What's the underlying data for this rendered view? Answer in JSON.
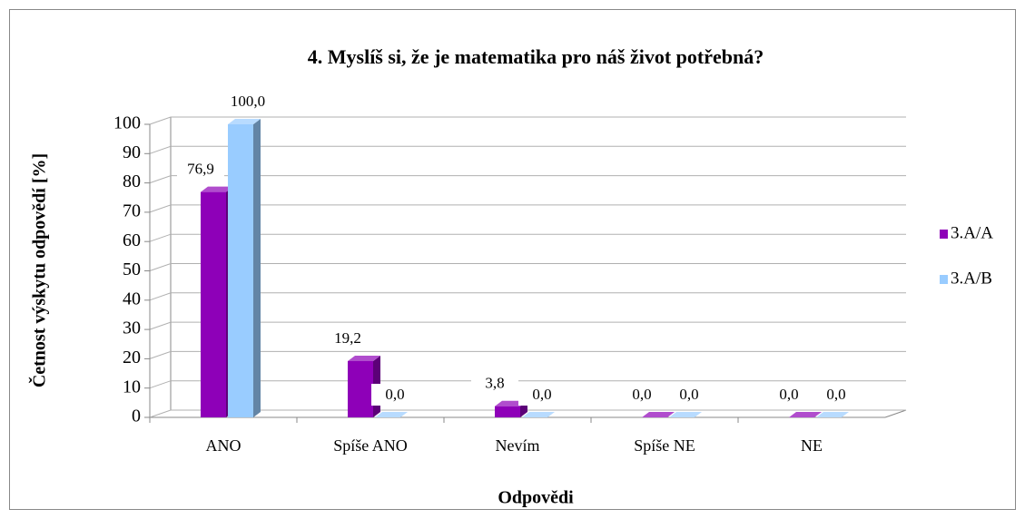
{
  "chart_data": {
    "type": "bar3d",
    "title": "4. Myslíš si, že je matematika pro náš život potřebná?",
    "categories": [
      "ANO",
      "Spíše ANO",
      "Nevím",
      "Spíše NE",
      "NE"
    ],
    "series": [
      {
        "name": "3.A/A",
        "color": "#8e00b8",
        "values": [
          76.9,
          19.2,
          3.8,
          0,
          0
        ],
        "value_labels": [
          "76,9",
          "19,2",
          "3,8",
          "0,0",
          "0,0"
        ]
      },
      {
        "name": "3.A/B",
        "color": "#99ccff",
        "values": [
          100,
          0,
          0,
          0,
          0
        ],
        "value_labels": [
          "100,0",
          "0,0",
          "0,0",
          "0,0",
          "0,0"
        ]
      }
    ],
    "ylim": [
      0,
      100
    ],
    "yticks": [
      0,
      10,
      20,
      30,
      40,
      50,
      60,
      70,
      80,
      90,
      100
    ],
    "x_label": "Odpovědi",
    "y_label": "Četnost výskytu odpovědí [%]",
    "grid": true,
    "legend": "right"
  }
}
